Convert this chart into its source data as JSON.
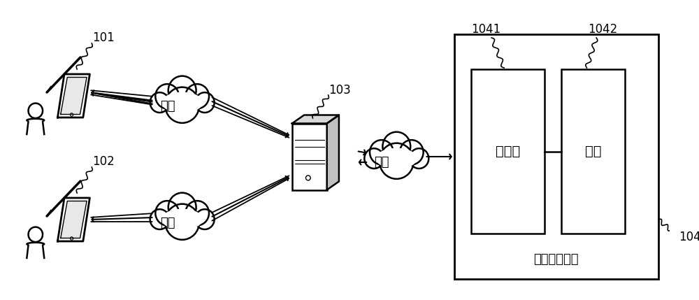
{
  "bg_color": "#ffffff",
  "line_color": "#000000",
  "label_101": "101",
  "label_102": "102",
  "label_103": "103",
  "label_104": "104",
  "label_1041": "1041",
  "label_1042": "1042",
  "text_network": "网络",
  "text_concentrator": "集中器",
  "text_meter": "电表",
  "text_device": "电量采集设备",
  "font_size_label": 12,
  "font_size_text": 13,
  "font_size_device": 13
}
